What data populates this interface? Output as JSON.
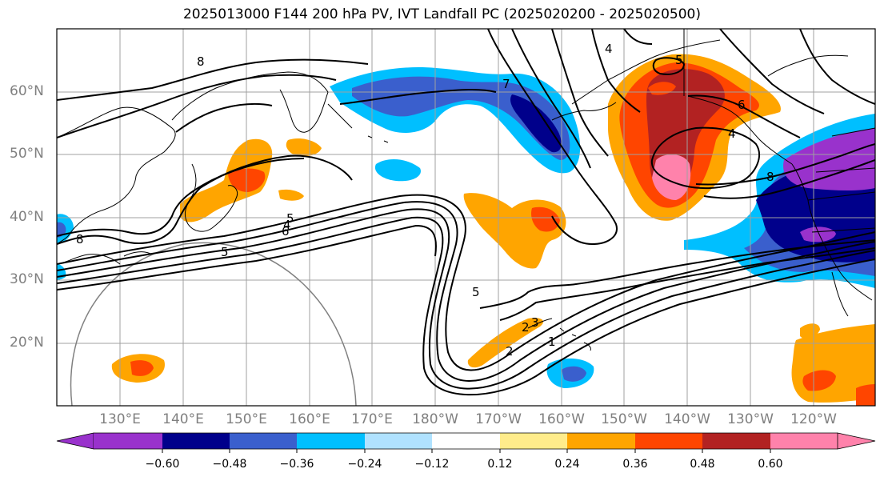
{
  "title": "2025013000 F144 200 hPa PV, IVT Landfall PC (2025020200 - 2025020500)",
  "lat_labels": [
    "60°N",
    "50°N",
    "40°N",
    "30°N",
    "20°N"
  ],
  "lon_labels": [
    "130°E",
    "140°E",
    "150°E",
    "160°E",
    "170°E",
    "180°W",
    "170°W",
    "160°W",
    "150°W",
    "140°W",
    "130°W",
    "120°W"
  ],
  "contour_labels": [
    "8",
    "7",
    "4",
    "5",
    "6",
    "8",
    "4",
    "5",
    "6",
    "2",
    "5",
    "1",
    "2",
    "3",
    "4",
    "5",
    "8"
  ],
  "colorbar": {
    "ticks": [
      "−0.60",
      "−0.48",
      "−0.36",
      "−0.24",
      "−0.12",
      "0.12",
      "0.24",
      "0.36",
      "0.48",
      "0.60"
    ],
    "colors": [
      "#9932cc",
      "#00008b",
      "#3a5fcd",
      "#00bfff",
      "#b0e2ff",
      "#ffffff",
      "#ffec8b",
      "#ffa500",
      "#ff4500",
      "#b22222",
      "#ff82ab"
    ]
  },
  "palette": {
    "purple": "#9932cc",
    "navy": "#00008b",
    "royal": "#3a5fcd",
    "sky": "#00bfff",
    "pale_blue": "#b0e2ff",
    "pale_yellow": "#ffec8b",
    "orange": "#ffa500",
    "red_orange": "#ff4500",
    "firebrick": "#b22222",
    "pink": "#ff82ab"
  }
}
